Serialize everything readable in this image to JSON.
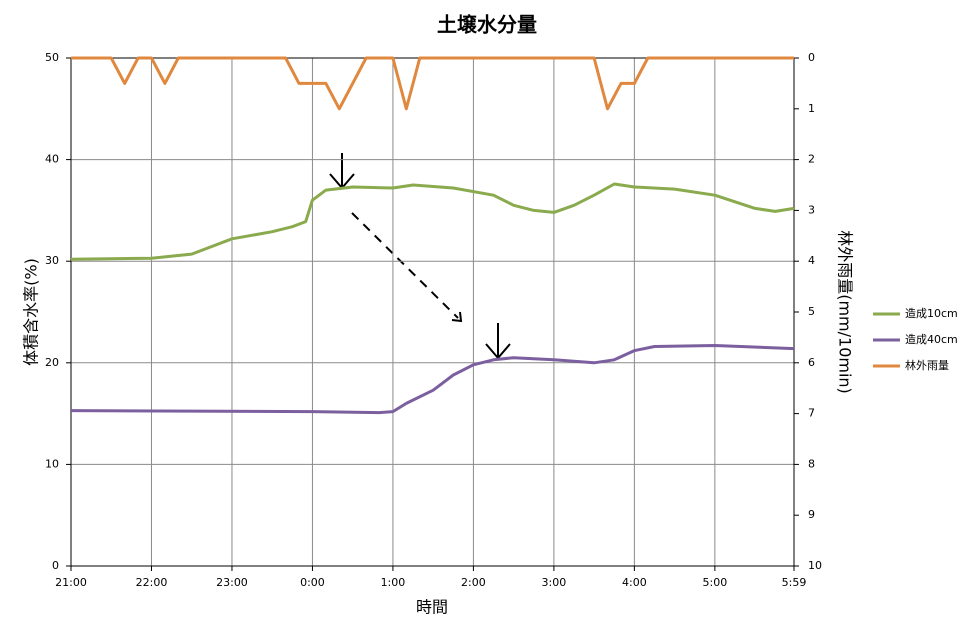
{
  "chart_data": {
    "type": "line",
    "title": "土壌水分量",
    "x_label": "時間",
    "y_label": "体積含水率(%)",
    "y2_label": "林外雨量(mm/10min)",
    "xlim": [
      0,
      539
    ],
    "xticks": [
      {
        "value": 0,
        "label": "21:00"
      },
      {
        "value": 60,
        "label": "22:00"
      },
      {
        "value": 120,
        "label": "23:00"
      },
      {
        "value": 180,
        "label": "0:00"
      },
      {
        "value": 240,
        "label": "1:00"
      },
      {
        "value": 300,
        "label": "2:00"
      },
      {
        "value": 360,
        "label": "3:00"
      },
      {
        "value": 420,
        "label": "4:00"
      },
      {
        "value": 480,
        "label": "5:00"
      },
      {
        "value": 539,
        "label": "5:59"
      }
    ],
    "ylim": [
      0,
      50
    ],
    "yticks": [
      0,
      10,
      20,
      30,
      40,
      50
    ],
    "y2lim": [
      10,
      0
    ],
    "y2ticks": [
      0,
      1,
      2,
      3,
      4,
      5,
      6,
      7,
      8,
      9,
      10
    ],
    "grid": true,
    "series": [
      {
        "name": "造成10cm",
        "color": "#8aaa4e",
        "x": [
          0,
          60,
          90,
          120,
          150,
          165,
          175,
          180,
          190,
          210,
          240,
          255,
          285,
          315,
          330,
          345,
          360,
          375,
          390,
          405,
          420,
          450,
          480,
          510,
          525,
          539
        ],
        "values": [
          30.2,
          30.3,
          30.7,
          32.2,
          32.9,
          33.4,
          33.9,
          36.0,
          37.0,
          37.3,
          37.2,
          37.5,
          37.2,
          36.5,
          35.5,
          35.0,
          34.8,
          35.5,
          36.5,
          37.6,
          37.3,
          37.1,
          36.5,
          35.2,
          34.9,
          35.2
        ]
      },
      {
        "name": "造成40cm",
        "color": "#7b5f9e",
        "x": [
          0,
          180,
          230,
          240,
          250,
          270,
          285,
          300,
          315,
          330,
          360,
          390,
          405,
          420,
          435,
          480,
          539
        ],
        "values": [
          15.3,
          15.2,
          15.1,
          15.2,
          16.0,
          17.3,
          18.8,
          19.8,
          20.3,
          20.5,
          20.3,
          20.0,
          20.3,
          21.2,
          21.6,
          21.7,
          21.4
        ]
      },
      {
        "name": "林外雨量",
        "color": "#e0883e",
        "axis": "y2",
        "x": [
          0,
          30,
          40,
          50,
          60,
          70,
          80,
          160,
          170,
          190,
          200,
          220,
          240,
          250,
          260,
          390,
          400,
          410,
          420,
          430,
          539
        ],
        "values": [
          0,
          0,
          0.5,
          0,
          0,
          0.5,
          0,
          0,
          0.5,
          0.5,
          1,
          0,
          0,
          1,
          0,
          0,
          1,
          0.5,
          0.5,
          0,
          0
        ]
      }
    ]
  }
}
